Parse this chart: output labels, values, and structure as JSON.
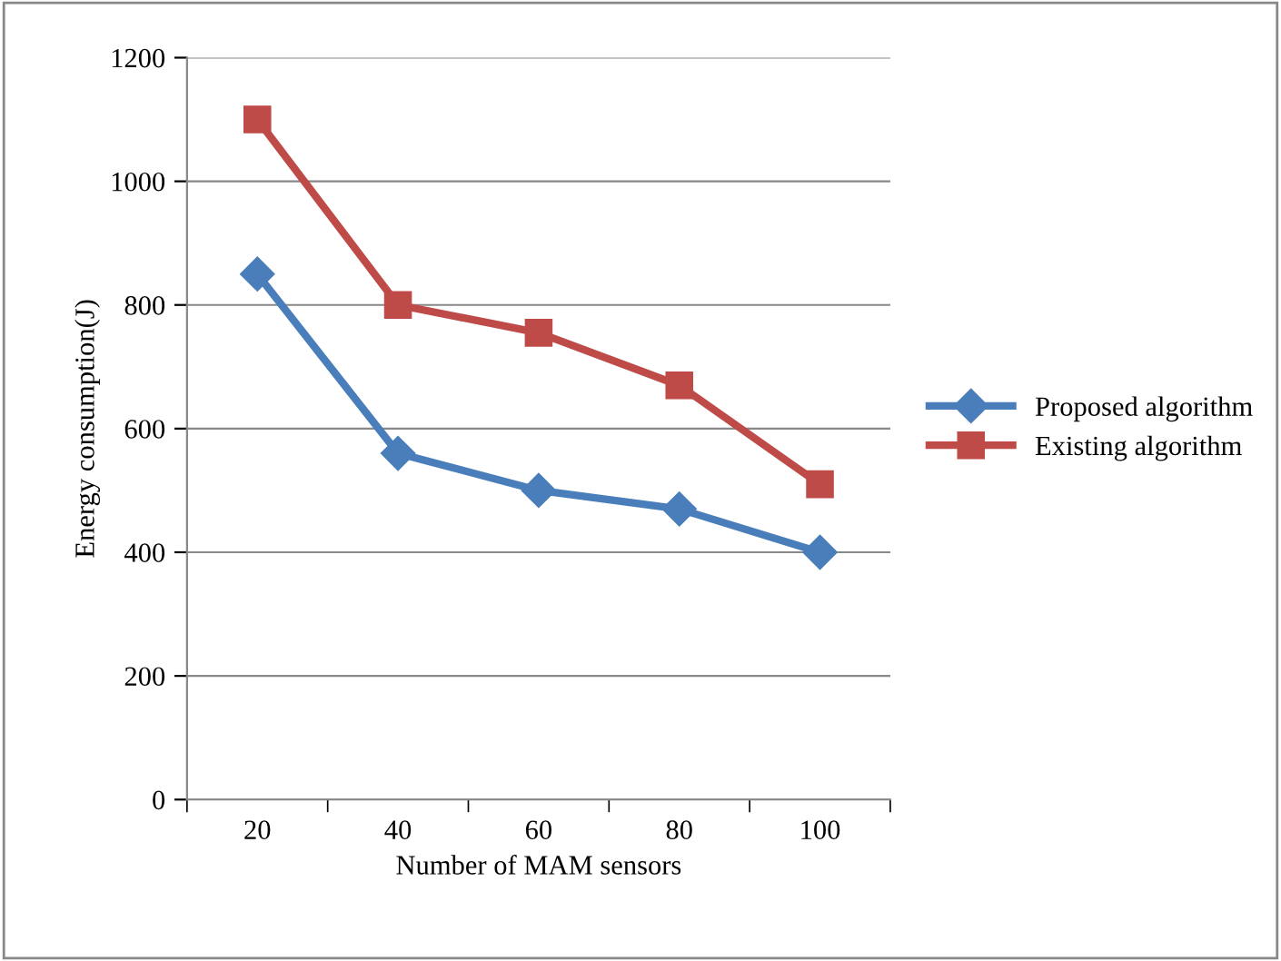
{
  "chart_data": {
    "type": "line",
    "xlabel": "Number of MAM sensors",
    "ylabel": "Energy consumption(J)",
    "categories": [
      "20",
      "40",
      "60",
      "80",
      "100"
    ],
    "series": [
      {
        "name": "Proposed algorithm",
        "color": "#4a7ebb",
        "marker": "diamond",
        "values": [
          850,
          560,
          500,
          470,
          400
        ]
      },
      {
        "name": "Existing algorithm",
        "color": "#be4b48",
        "marker": "square",
        "values": [
          1100,
          800,
          755,
          670,
          510
        ]
      }
    ],
    "ylim": [
      0,
      1200
    ],
    "yticks": [
      0,
      200,
      400,
      600,
      800,
      1000,
      1200
    ],
    "grid": "y",
    "legend": "right",
    "line_style": "solid"
  }
}
